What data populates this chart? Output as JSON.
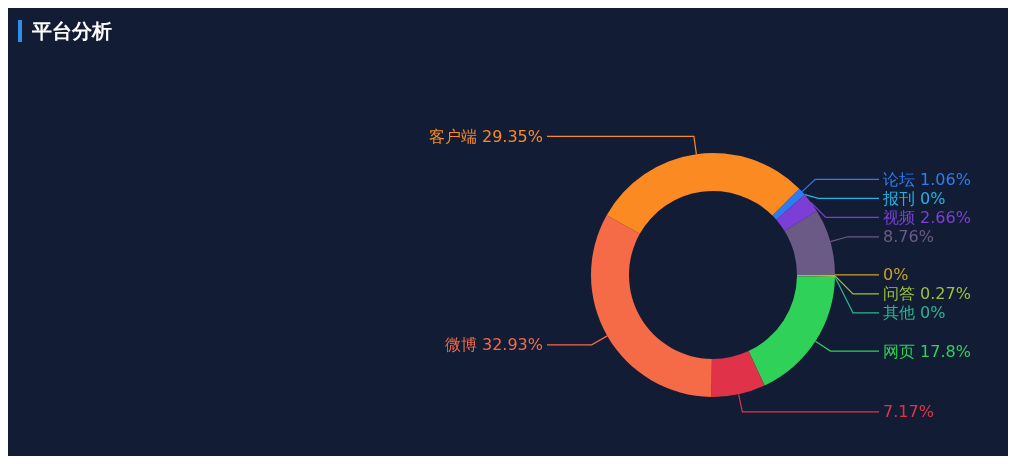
{
  "chart_data": {
    "type": "donut",
    "title": "平台分析",
    "categories": [
      "论坛",
      "报刊",
      "视频",
      null,
      null,
      "问答",
      "其他",
      "网页",
      null,
      "微博",
      "客户端"
    ],
    "values": [
      1.06,
      0,
      2.66,
      8.76,
      0,
      0.27,
      0,
      17.8,
      7.17,
      32.93,
      29.35
    ],
    "colors": [
      "#2f7bf0",
      "#1fb5e8",
      "#7b3fd6",
      "#6b5a86",
      "#c9a227",
      "#9bc23a",
      "#2ab68f",
      "#2fd158",
      "#e0334a",
      "#f56a47",
      "#fb8a23"
    ],
    "value_labels": [
      "1.06%",
      "0%",
      "2.66%",
      "8.76%",
      "0%",
      "0.27%",
      "0%",
      "17.8%",
      "7.17%",
      "32.93%",
      "29.35%"
    ]
  }
}
